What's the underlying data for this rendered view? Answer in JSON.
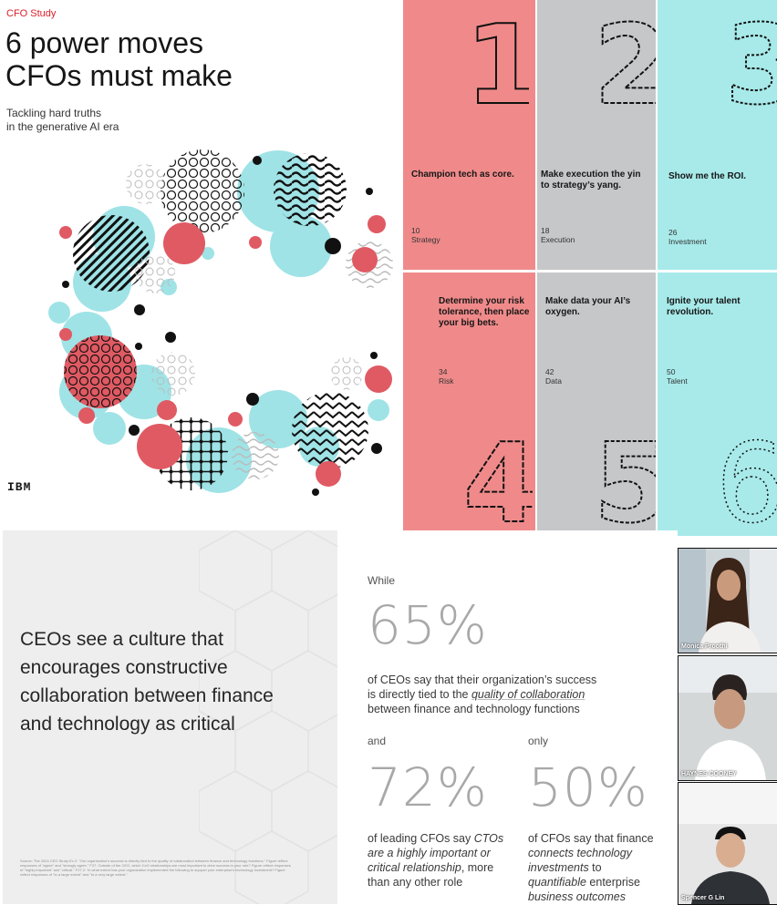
{
  "cover": {
    "kicker": "CFO Study",
    "title_line1": "6 power moves",
    "title_line2": "CFOs must make",
    "subtitle_line1": "Tackling hard truths",
    "subtitle_line2": "in the generative AI era",
    "logo": "IBM",
    "colors": {
      "coral": "#e05a63",
      "aqua": "#9fe3e6",
      "red": "#da1e28"
    }
  },
  "moves": [
    {
      "numeral": "1",
      "statement": "Champion tech as core.",
      "page": "10",
      "topic": "Strategy",
      "bg": "#f08a8a"
    },
    {
      "numeral": "2",
      "statement": "Make execution the yin to strategy’s yang.",
      "page": "18",
      "topic": "Execution",
      "bg": "#c6c7c9"
    },
    {
      "numeral": "3",
      "statement": "Show me the ROI.",
      "page": "26",
      "topic": "Investment",
      "bg": "#a8eaea"
    },
    {
      "numeral": "4",
      "statement": "Determine your risk tolerance, then place your big bets.",
      "page": "34",
      "topic": "Risk",
      "bg": "#f08a8a"
    },
    {
      "numeral": "5",
      "statement": "Make data your AI’s oxygen.",
      "page": "42",
      "topic": "Data",
      "bg": "#c6c7c9"
    },
    {
      "numeral": "6",
      "statement": "Ignite your talent revolution.",
      "page": "50",
      "topic": "Talent",
      "bg": "#a8eaea"
    }
  ],
  "slide_left": {
    "headline_line1": "CEOs see a culture that",
    "headline_line2": "encourages constructive",
    "headline_line3": "collaboration between finance",
    "headline_line4": "and technology as critical",
    "source": "Source: The 2024 CEO Study Ex.2: \"Our organization's success is directly tied to the quality of collaboration between finance and technology functions.\" Figure reflect responses of \"agree\" and \"strongly agree.\" F27: Outside of the CEO, which CxO relationships are most important to drive success in your role? Figure reflect responses of \"highly important\" and \"critical.\" F27.2: To what extent has your organization implemented the following to support your enterprise's technology investment? Figure reflect responses of \"to a large extent\" and \"to a very large extent.\""
  },
  "slide_stats": {
    "while": "While",
    "stat1": "65%",
    "stat1_text_a": "of CEOs say that their organization’s success",
    "stat1_text_b": "is directly tied to the ",
    "stat1_text_em": "quality of collaboration",
    "stat1_text_c": "between finance and technology functions",
    "and": "and",
    "only": "only",
    "stat2": "72%",
    "stat2_a": "of leading CFOs say ",
    "stat2_em1": "CTOs",
    "stat2_em2": "are a highly important or",
    "stat2_em3": "critical relationship",
    "stat2_b": ", more",
    "stat2_c": "than any other role",
    "stat3": "50%",
    "stat3_a": "of CFOs say that finance",
    "stat3_em1": "connects technology",
    "stat3_em2": "investments",
    "stat3_b": " to",
    "stat3_em3": "quantifiable",
    "stat3_c": " enterprise",
    "stat3_em4": "business outcomes"
  },
  "participants": [
    {
      "name": "Monica Proothi"
    },
    {
      "name": "HAYNES COONEY"
    },
    {
      "name": "Spencer G Lin"
    }
  ]
}
